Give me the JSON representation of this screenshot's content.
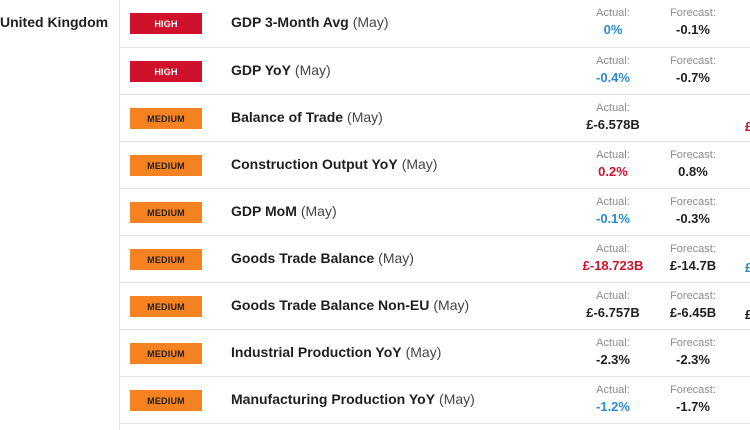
{
  "country": "United Kingdom",
  "labels": {
    "actual": "Actual:",
    "forecast": "Forecast:"
  },
  "rows": [
    {
      "impact": "HIGH",
      "impact_level": "high",
      "name": "GDP 3-Month Avg",
      "period": "(May)",
      "actual": "0%",
      "actual_color": "blue",
      "forecast": "-0.1%",
      "edge": "",
      "edge_color": ""
    },
    {
      "impact": "HIGH",
      "impact_level": "high",
      "name": "GDP YoY",
      "period": "(May)",
      "actual": "-0.4%",
      "actual_color": "blue",
      "forecast": "-0.7%",
      "edge": "",
      "edge_color": ""
    },
    {
      "impact": "MEDIUM",
      "impact_level": "medium",
      "name": "Balance of Trade",
      "period": "(May)",
      "actual": "£-6.578B",
      "actual_color": "black",
      "forecast": "",
      "edge": "£",
      "edge_color": "red"
    },
    {
      "impact": "MEDIUM",
      "impact_level": "medium",
      "name": "Construction Output YoY",
      "period": "(May)",
      "actual": "0.2%",
      "actual_color": "red",
      "forecast": "0.8%",
      "edge": "",
      "edge_color": ""
    },
    {
      "impact": "MEDIUM",
      "impact_level": "medium",
      "name": "GDP MoM",
      "period": "(May)",
      "actual": "-0.1%",
      "actual_color": "blue",
      "forecast": "-0.3%",
      "edge": "",
      "edge_color": ""
    },
    {
      "impact": "MEDIUM",
      "impact_level": "medium",
      "name": "Goods Trade Balance",
      "period": "(May)",
      "actual": "£-18.723B",
      "actual_color": "red",
      "forecast": "£-14.7B",
      "edge": "£",
      "edge_color": "blue"
    },
    {
      "impact": "MEDIUM",
      "impact_level": "medium",
      "name": "Goods Trade Balance Non-EU",
      "period": "(May)",
      "actual": "£-6.757B",
      "actual_color": "black",
      "forecast": "£-6.45B",
      "edge": "£",
      "edge_color": "black"
    },
    {
      "impact": "MEDIUM",
      "impact_level": "medium",
      "name": "Industrial Production YoY",
      "period": "(May)",
      "actual": "-2.3%",
      "actual_color": "black",
      "forecast": "-2.3%",
      "edge": "",
      "edge_color": ""
    },
    {
      "impact": "MEDIUM",
      "impact_level": "medium",
      "name": "Manufacturing Production YoY",
      "period": "(May)",
      "actual": "-1.2%",
      "actual_color": "blue",
      "forecast": "-1.7%",
      "edge": "",
      "edge_color": ""
    }
  ],
  "colors": {
    "high": "#d0112b",
    "medium": "#f58220",
    "positive": "#2a8bd6",
    "negative": "#d0112b"
  }
}
